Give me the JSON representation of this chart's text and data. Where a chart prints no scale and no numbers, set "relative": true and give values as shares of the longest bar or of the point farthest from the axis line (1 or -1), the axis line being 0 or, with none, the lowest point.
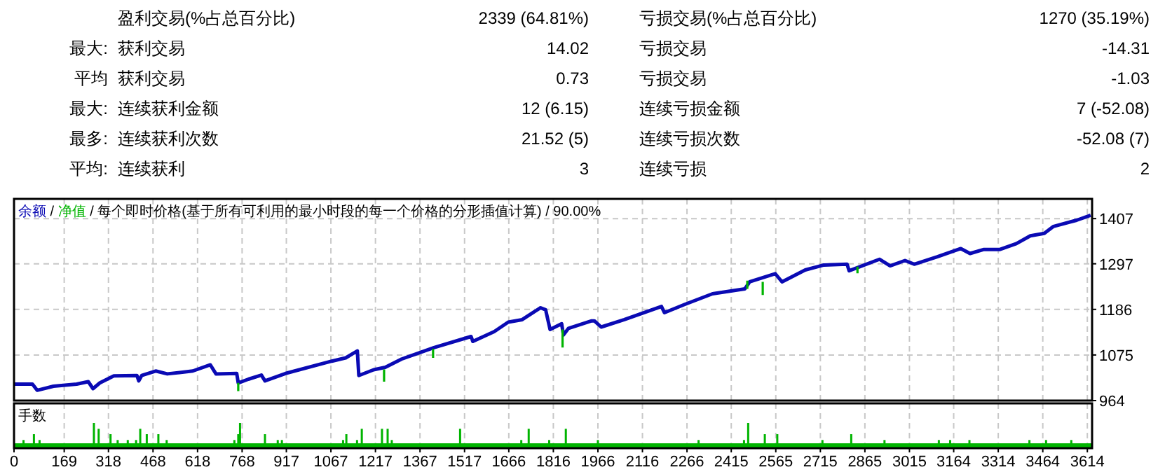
{
  "chart_data": [
    {
      "type": "other",
      "annotations": [
        null,
        "盈利交易(%占总百分比)",
        "2339 (64.81%)",
        "亏损交易(%占总百分比)",
        "1270 (35.19%)",
        "最大:",
        "获利交易",
        "14.02",
        "亏损交易",
        "-14.31",
        "平均",
        "获利交易",
        "0.73",
        "亏损交易",
        "-1.03",
        "最大:",
        "连续获利金额",
        "12 (6.15)",
        "连续亏损金额",
        "7 (-52.08)",
        "最多:",
        "连续获利次数",
        "21.52 (5)",
        "连续亏损次数",
        "-52.08 (7)",
        "平均:",
        "连续获利",
        "3",
        "连续亏损",
        "2"
      ]
    },
    {
      "type": "line",
      "subtitle": "/ 每个即时价格(基于所有可利用的最小时段的每一个价格的分形插值计算) / 90.00%",
      "annotations": [
        "/"
      ],
      "legend": "top left",
      "grid": true,
      "tick_labels": "y",
      "xlim": [
        0,
        3630
      ],
      "xticks": [
        0,
        169,
        318,
        468,
        618,
        768,
        917,
        1067,
        1217,
        1367,
        1517,
        1666,
        1816,
        1966,
        2116,
        2266,
        2415,
        2565,
        2715,
        2865,
        3015,
        3164,
        3314,
        3464,
        3614
      ],
      "ylim": [
        964,
        1455
      ],
      "yticks": [
        964,
        1075,
        1186,
        1297,
        1407
      ],
      "series": [
        {
          "name": "余额",
          "color": "#0a0ab4",
          "x": [
            0,
            62,
            78,
            133,
            211,
            250,
            266,
            289,
            336,
            414,
            420,
            430,
            477,
            516,
            602,
            661,
            680,
            750,
            755,
            789,
            833,
            845,
            914,
            1070,
            1117,
            1156,
            1161,
            1211,
            1250,
            1305,
            1414,
            1539,
            1545,
            1617,
            1664,
            1711,
            1773,
            1790,
            1805,
            1844,
            1850,
            1867,
            1945,
            1954,
            1977,
            2055,
            2180,
            2190,
            2258,
            2352,
            2461,
            2477,
            2563,
            2586,
            2664,
            2727,
            2805,
            2812,
            2914,
            2950,
            3000,
            3031,
            3109,
            3188,
            3219,
            3266,
            3320,
            3375,
            3422,
            3469,
            3500,
            3578,
            3625
          ],
          "values": [
            1004,
            1004,
            989,
            999,
            1004,
            1010,
            993,
            1007,
            1024,
            1025,
            1012,
            1025,
            1036,
            1029,
            1036,
            1051,
            1029,
            1030,
            1007,
            1016,
            1026,
            1012,
            1030,
            1060,
            1068,
            1085,
            1025,
            1039,
            1045,
            1065,
            1093,
            1120,
            1108,
            1132,
            1155,
            1161,
            1190,
            1185,
            1137,
            1151,
            1124,
            1140,
            1158,
            1158,
            1143,
            1161,
            1193,
            1178,
            1198,
            1224,
            1236,
            1253,
            1273,
            1253,
            1282,
            1294,
            1296,
            1280,
            1308,
            1292,
            1305,
            1296,
            1314,
            1334,
            1322,
            1332,
            1332,
            1346,
            1365,
            1371,
            1388,
            1403,
            1415
          ]
        },
        {
          "name": "净值",
          "color": "#00b400",
          "x": [
            755,
            755,
            null,
            1246,
            1246,
            null,
            1411,
            1411,
            null,
            1847,
            1847,
            null,
            2469,
            2469,
            null,
            2521,
            2521,
            null,
            2840,
            2840
          ],
          "values": [
            1007,
            987,
            null,
            1040,
            1010,
            null,
            1090,
            1068,
            null,
            1137,
            1093,
            null,
            1236,
            1256,
            null,
            1253,
            1221,
            null,
            1290,
            1274
          ]
        }
      ]
    },
    {
      "type": "bar",
      "title": "手数",
      "relative": true,
      "grid": "x",
      "tick_labels": "x",
      "color": "#00b400",
      "xlim": [
        0,
        3630
      ],
      "xticks": [
        0,
        169,
        318,
        468,
        618,
        768,
        917,
        1067,
        1217,
        1367,
        1517,
        1666,
        1816,
        1966,
        2116,
        2266,
        2415,
        2565,
        2715,
        2865,
        3015,
        3164,
        3314,
        3464,
        3614
      ],
      "x": [
        32,
        67,
        86,
        269,
        285,
        325,
        349,
        383,
        411,
        425,
        447,
        486,
        514,
        742,
        755,
        761,
        845,
        888,
        902,
        1108,
        1119,
        1155,
        1171,
        1239,
        1258,
        1272,
        1502,
        1708,
        1733,
        1802,
        1858,
        1966,
        2305,
        2458,
        2472,
        2528,
        2570,
        2722,
        2819,
        2931,
        3114,
        3152,
        3217,
        3419,
        3475,
        3560
      ],
      "values": [
        0.24,
        0.5,
        0.24,
        1,
        0.74,
        0.5,
        0.24,
        0.24,
        0.24,
        0.74,
        0.5,
        0.5,
        0.24,
        0.24,
        0.5,
        1,
        0.5,
        0.24,
        0.24,
        0.24,
        0.5,
        0.24,
        0.74,
        0.74,
        0.74,
        0.24,
        0.74,
        0.24,
        0.74,
        0.24,
        0.74,
        0.24,
        0.24,
        0.24,
        1,
        0.5,
        0.5,
        0.24,
        0.5,
        0.24,
        0.24,
        0.24,
        0.24,
        0.24,
        0.24,
        0.24
      ]
    }
  ]
}
